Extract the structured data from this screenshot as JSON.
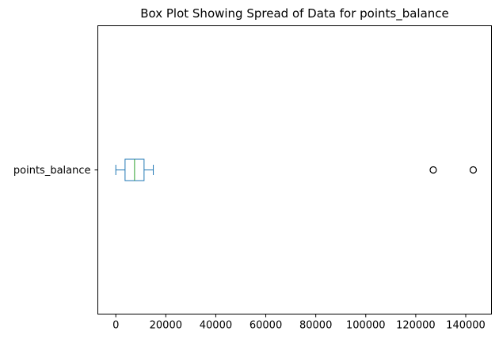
{
  "chart_data": {
    "type": "box",
    "orientation": "horizontal",
    "title": "Box Plot Showing Spread of Data for points_balance",
    "categories": [
      "points_balance"
    ],
    "series": [
      {
        "name": "points_balance",
        "whisker_low": 0,
        "q1": 3700,
        "median": 7500,
        "q3": 11300,
        "whisker_high": 15000,
        "outliers": [
          127000,
          143000
        ]
      }
    ],
    "xlim": [
      -7200,
      150300
    ],
    "xticks": [
      0,
      20000,
      40000,
      60000,
      80000,
      100000,
      120000,
      140000
    ],
    "xtick_labels": [
      "0",
      "20000",
      "40000",
      "60000",
      "80000",
      "100000",
      "120000",
      "140000"
    ],
    "grid": false,
    "colors": {
      "box": "#1f77b4",
      "median": "#2ca02c",
      "outlier": "#000000",
      "axes": "#000000"
    }
  }
}
